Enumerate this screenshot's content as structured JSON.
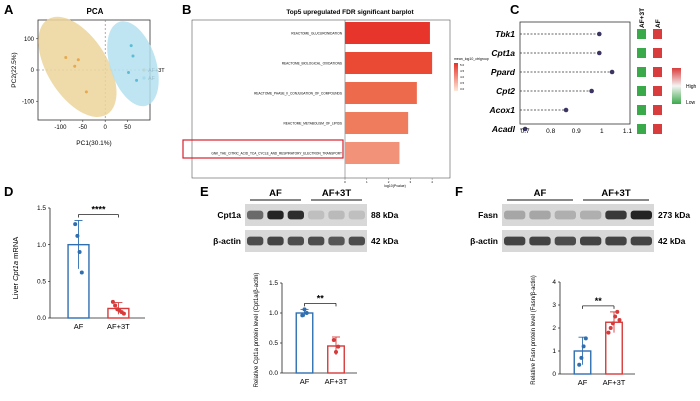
{
  "panels": {
    "A": "A",
    "B": "B",
    "C": "C",
    "D": "D",
    "E": "E",
    "F": "F"
  },
  "chart_data": [
    {
      "id": "A",
      "type": "scatter",
      "title": "PCA",
      "xlabel": "PC1(30.1%)",
      "ylabel": "PC2(22.5%)",
      "xlim": [
        -150,
        100
      ],
      "ylim": [
        -160,
        160
      ],
      "xticks": [
        "-100",
        "-50",
        "0",
        "50"
      ],
      "yticks": [
        "-100",
        "0",
        "100"
      ],
      "legend": "right",
      "series": [
        {
          "name": "AF+3T",
          "color": "#e8a84c",
          "fill": "#ecd39b",
          "points": [
            [
              -88,
              40
            ],
            [
              -68,
              12
            ],
            [
              -60,
              33
            ],
            [
              -42,
              -70
            ]
          ]
        },
        {
          "name": "AF",
          "color": "#5bbcd6",
          "fill": "#b3e0ee",
          "points": [
            [
              58,
              78
            ],
            [
              52,
              -8
            ],
            [
              70,
              -33
            ],
            [
              62,
              45
            ]
          ]
        }
      ]
    },
    {
      "id": "B",
      "type": "bar",
      "orientation": "horizontal",
      "title": "Top5 upregulated FDR significant barplot",
      "xlabel": "log10(Pvalue)",
      "categories": [
        "REACTOME_GLUCURONIDATION",
        "REACTOME_BIOLOGICAL_OXIDATIONS",
        "REACTOME_PHASE_II_CONJUGATION_OF_COMPOUNDS",
        "REACTOME_METABOLISM_OF_LIPIDS",
        "GNK_THE_CITRIC_ACID_TCA_CYCLE_AND_RESPIRATORY_ELECTRON_TRANSPORT"
      ],
      "values": [
        3.9,
        4.0,
        3.3,
        2.9,
        2.5
      ],
      "xlim": [
        0,
        4.5
      ],
      "xticks": [
        "0",
        "1",
        "2",
        "3",
        "4"
      ],
      "highlighted": "GNK_THE_CITRIC_ACID_TCA_CYCLE_AND_RESPIRATORY_ELECTRON_TRANSPORT",
      "legend_title": "mean_log10_ctrlgroup",
      "legend_ticks": [
        "5.0",
        "4.5",
        "4.0",
        "3.5",
        "3.0"
      ],
      "colors": [
        "#e8352c",
        "#ea4a34",
        "#ee6a4d",
        "#f07c5e",
        "#f29279"
      ]
    },
    {
      "id": "C",
      "type": "lollipop",
      "categories": [
        "Tbk1",
        "Cpt1a",
        "Ppard",
        "Cpt2",
        "Acox1",
        "Acadl"
      ],
      "values": [
        0.99,
        0.99,
        1.04,
        0.96,
        0.86,
        0.7
      ],
      "xlim": [
        0.68,
        1.11
      ],
      "xticks": [
        "0.7",
        "0.8",
        "0.9",
        "1",
        "1.1"
      ],
      "heat_columns": [
        "AF+3T",
        "AF"
      ],
      "heat": [
        [
          "low",
          "high"
        ],
        [
          "low",
          "high"
        ],
        [
          "low",
          "high"
        ],
        [
          "low",
          "high"
        ],
        [
          "low",
          "high"
        ],
        [
          "low",
          "high"
        ]
      ],
      "heat_colors": {
        "low": "#3aa94a",
        "high": "#d93c3c"
      },
      "legend": {
        "high": "High",
        "low": "Low"
      }
    },
    {
      "id": "D",
      "type": "bar",
      "ylabel_pre": "Liver ",
      "ylabel_italic": "Cpt1a",
      "ylabel_post": " mRNA",
      "categories": [
        "AF",
        "AF+3T"
      ],
      "values": [
        1.0,
        0.13
      ],
      "errors": [
        0.33,
        0.08
      ],
      "ylim": [
        0,
        1.5
      ],
      "yticks": [
        "0.0",
        "0.5",
        "1.0",
        "1.5"
      ],
      "points": [
        [
          1.28,
          1.12,
          0.9,
          0.62
        ],
        [
          0.22,
          0.17,
          0.12,
          0.1,
          0.08,
          0.06
        ]
      ],
      "colors": [
        "#2f6fb0",
        "#d63a3a"
      ],
      "significance": "****"
    },
    {
      "id": "E",
      "type": "bar",
      "ylabel": "Relative Cpt1a protein level (Cpt1a/β-actin)",
      "categories": [
        "AF",
        "AF+3T"
      ],
      "values": [
        1.0,
        0.45
      ],
      "errors": [
        0.06,
        0.15
      ],
      "ylim": [
        0,
        1.5
      ],
      "yticks": [
        "0.0",
        "0.5",
        "1.0",
        "1.5"
      ],
      "points": [
        [
          0.96,
          1.06,
          1.0
        ],
        [
          0.55,
          0.35,
          0.44
        ]
      ],
      "colors": [
        "#2f6fb0",
        "#d63a3a"
      ],
      "significance": "**"
    },
    {
      "id": "F",
      "type": "bar",
      "ylabel": "Relative Fasn protein level (Fasn/β-actin)",
      "categories": [
        "AF",
        "AF+3T"
      ],
      "values": [
        1.0,
        2.25
      ],
      "errors": [
        0.6,
        0.45
      ],
      "ylim": [
        0,
        4
      ],
      "yticks": [
        "0",
        "1",
        "2",
        "3",
        "4"
      ],
      "points": [
        [
          0.4,
          0.7,
          1.2,
          1.55
        ],
        [
          1.8,
          2.0,
          2.2,
          2.5,
          2.7,
          2.35
        ]
      ],
      "colors": [
        "#2f6fb0",
        "#d63a3a"
      ],
      "significance": "**"
    }
  ],
  "blots": {
    "E": {
      "groups": [
        "AF",
        "AF+3T"
      ],
      "rows": [
        {
          "label": "Cpt1a",
          "kda": "88 kDa"
        },
        {
          "label": "β-actin",
          "kda": "42 kDa"
        }
      ]
    },
    "F": {
      "groups": [
        "AF",
        "AF+3T"
      ],
      "rows": [
        {
          "label": "Fasn",
          "kda": "273 kDa"
        },
        {
          "label": "β-actin",
          "kda": "42 kDa"
        }
      ]
    }
  }
}
